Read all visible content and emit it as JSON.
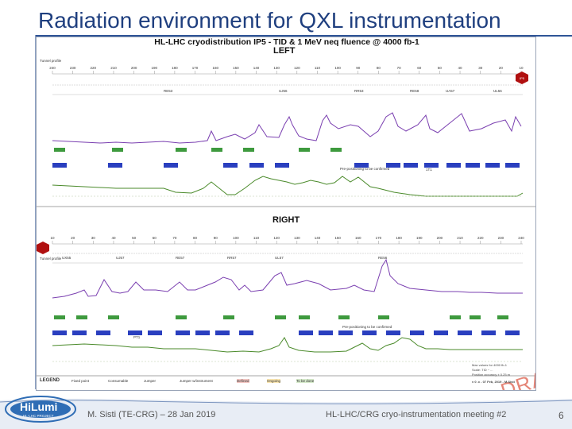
{
  "slide": {
    "title": "Radiation environment for QXL instrumentation",
    "page_number": "6"
  },
  "figure": {
    "title": "HL-LHC cryodistribution IP5 - TID & 1 MeV neq fluence @ 4000 fb-1",
    "left_label": "LEFT",
    "right_label": "RIGHT",
    "draft_watermark": "DRAFT",
    "legend_label": "LEGEND",
    "legend_items": [
      "Fixed point",
      "Consumable",
      "Jumper",
      "Jumper w/instrument",
      "Defined",
      "Ongoing",
      "To be done"
    ],
    "left_tunnel_label": "Tunnel profile",
    "right_tunnel_label": "Tunnel profile",
    "left_ticks": [
      "240",
      "230",
      "220",
      "210",
      "200",
      "190",
      "180",
      "170",
      "160",
      "150",
      "140",
      "130",
      "120",
      "110",
      "100",
      "90",
      "80",
      "70",
      "60",
      "50",
      "40",
      "30",
      "20",
      "10"
    ],
    "right_ticks": [
      "10",
      "20",
      "30",
      "40",
      "50",
      "60",
      "70",
      "80",
      "90",
      "100",
      "110",
      "120",
      "130",
      "140",
      "150",
      "160",
      "170",
      "180",
      "190",
      "200",
      "210",
      "220",
      "230",
      "240"
    ],
    "left_annotations": [
      "RE53",
      "UJ56",
      "RR53",
      "RE58",
      "UA57",
      "UL56",
      "1T1"
    ],
    "right_annotations": [
      "UX55",
      "UJ57",
      "RE57",
      "RR57",
      "UL57",
      "RE56",
      "PT1"
    ],
    "ip_left": "IP5",
    "ip_right": "IP5",
    "note_left": "Pre-positioning to be confirmed",
    "note_right": "Pre-positioning to be confirmed",
    "caption_lines": [
      "Max values for 4000 fb-1",
      "Scale: TID ~ ...",
      "Position accuracy ± 0.25 m",
      "v 0 .x - 07 Feb, 2019 - M.Sisti"
    ]
  },
  "footer": {
    "author": "M. Sisti (TE-CRG) – 28 Jan 2019",
    "meeting": "HL-LHC/CRG cryo-instrumentation meeting #2",
    "logo_text": "HiLumi",
    "logo_sub": "HL-LHC PROJECT"
  }
}
